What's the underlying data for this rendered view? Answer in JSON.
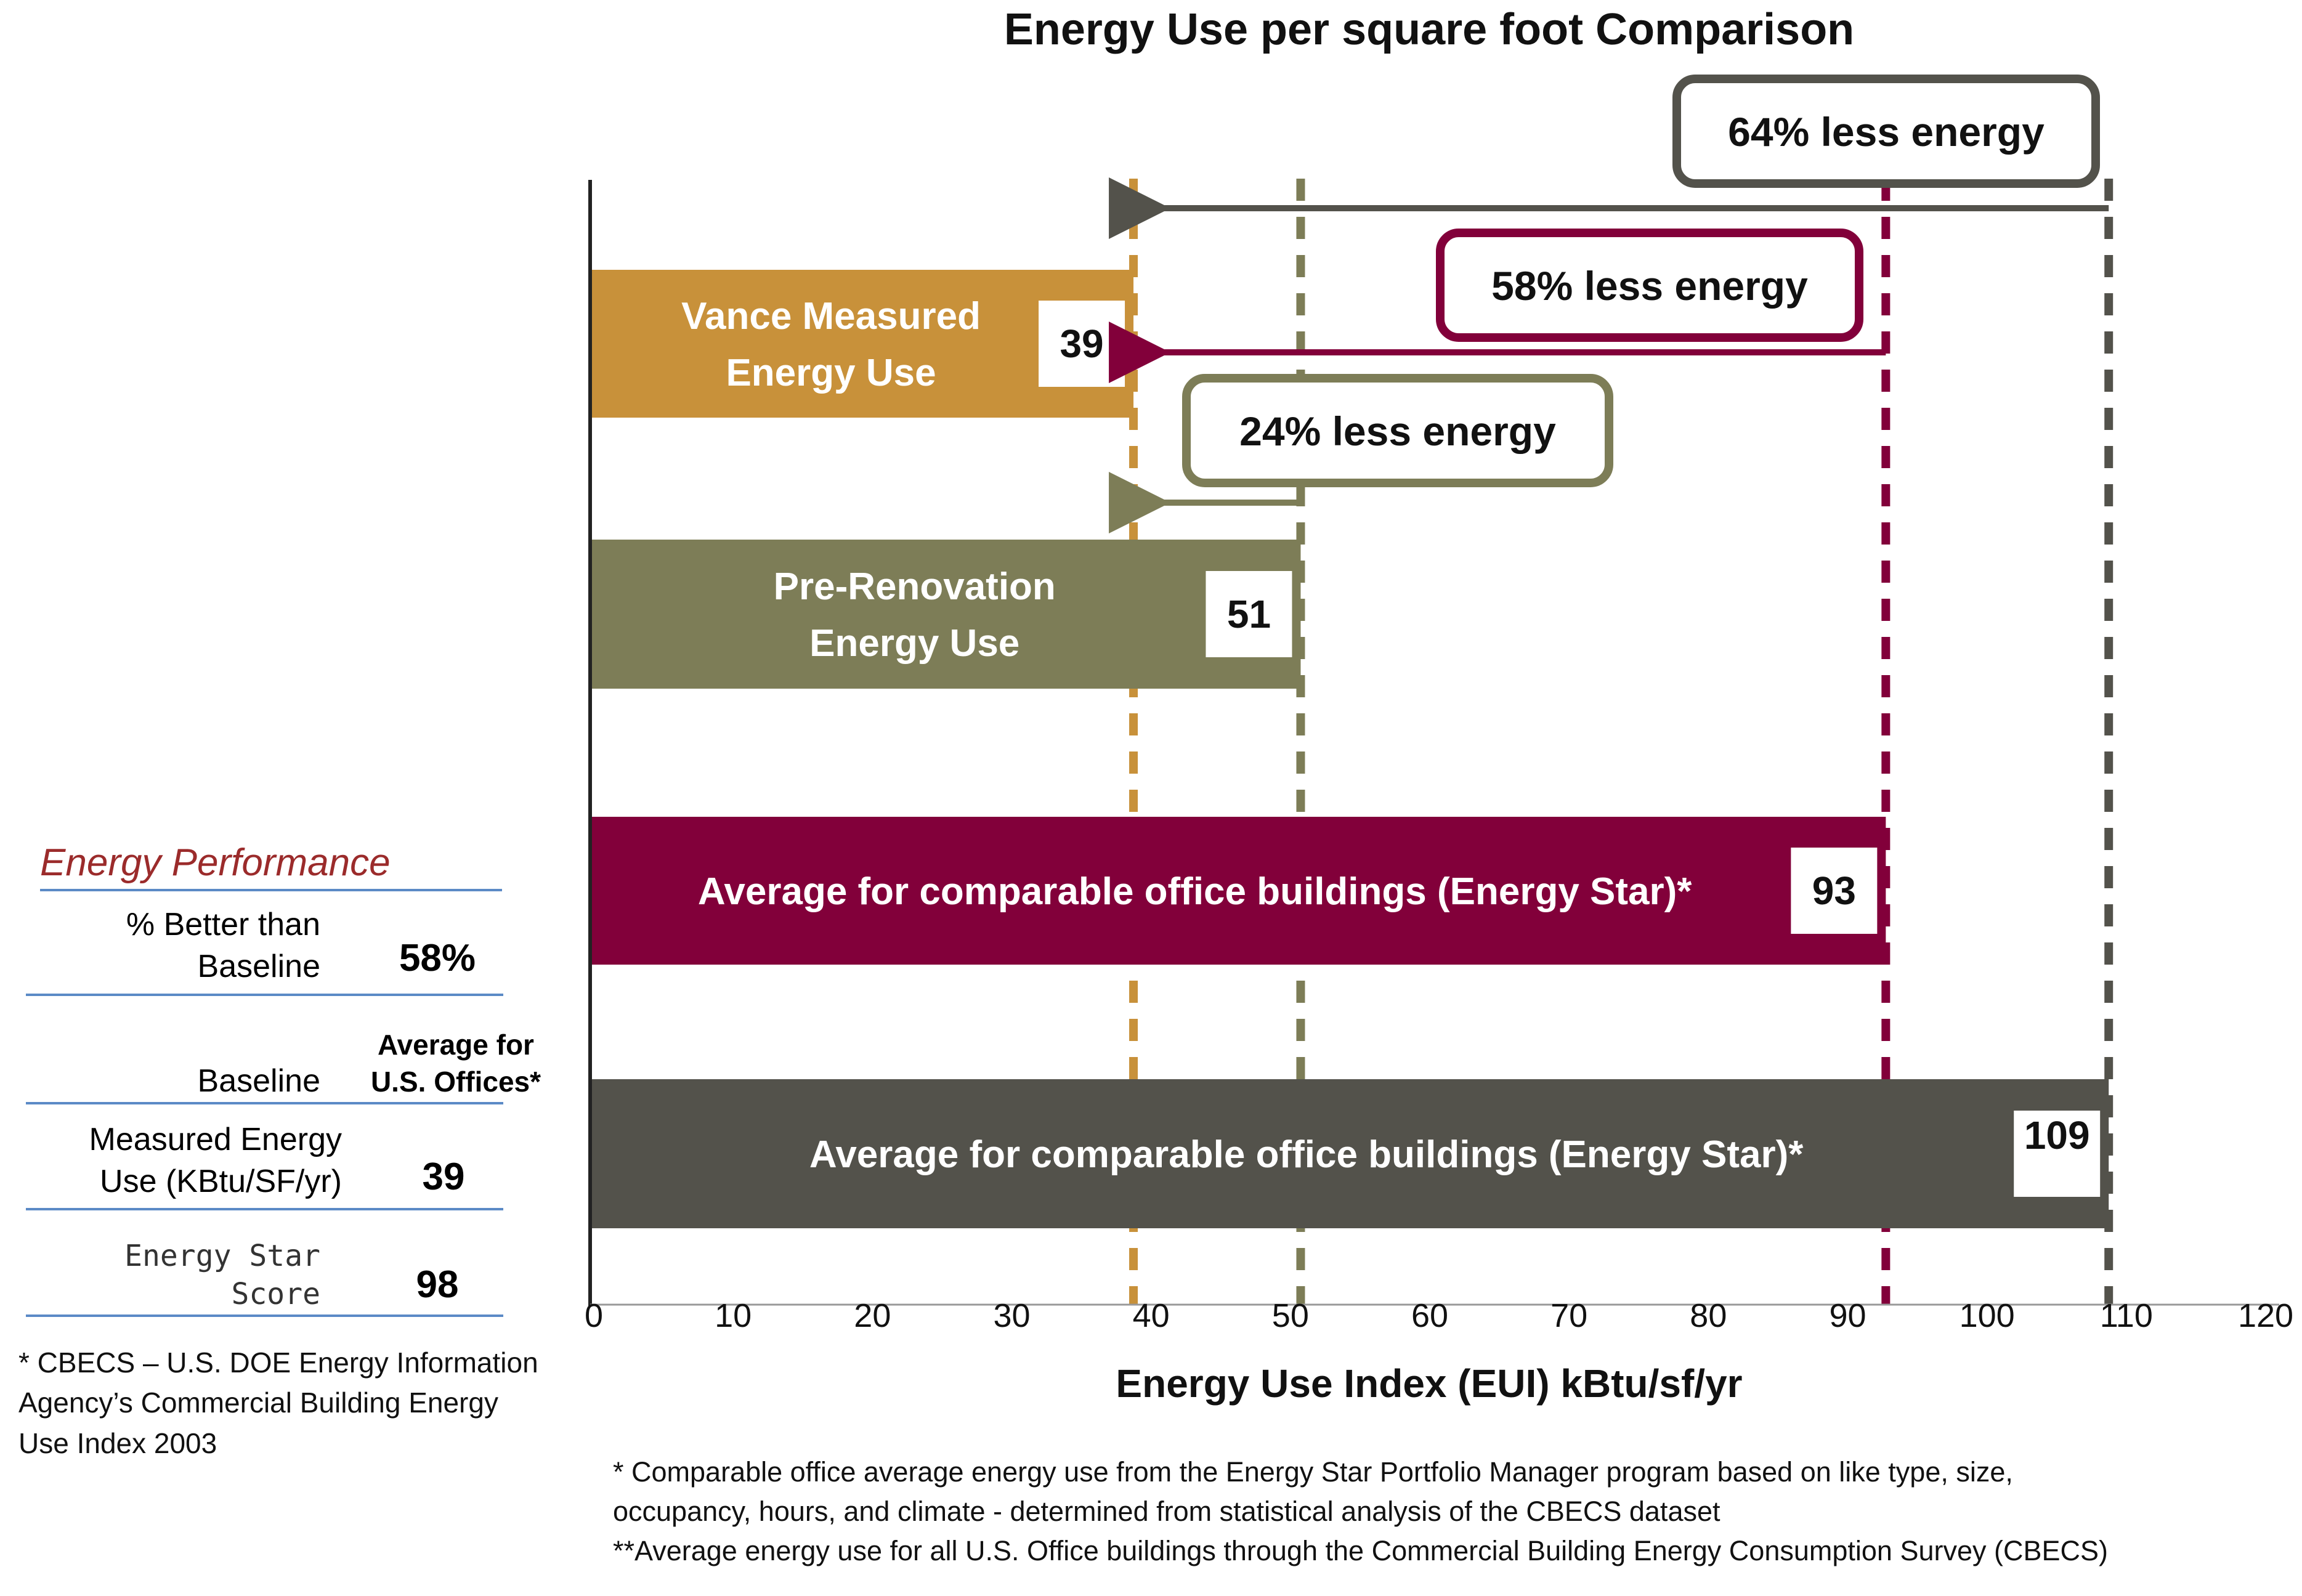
{
  "chart_data": {
    "type": "bar",
    "orientation": "horizontal",
    "title": "Energy Use per square foot Comparison",
    "xlabel": "Energy Use Index (EUI) kBtu/sf/yr",
    "ylabel": "",
    "xlim": [
      0,
      120
    ],
    "xticks": [
      0,
      10,
      20,
      30,
      40,
      50,
      60,
      70,
      80,
      90,
      100,
      110,
      120
    ],
    "grid": false,
    "bars": [
      {
        "label_lines": [
          "Vance Measured",
          "Energy Use"
        ],
        "value": 39,
        "color": "#c8913a"
      },
      {
        "label_lines": [
          "Pre-Renovation",
          "Energy Use"
        ],
        "value": 51,
        "color": "#7d7d57"
      },
      {
        "label_lines": [
          "Average for comparable office buildings (Energy Star)*"
        ],
        "value": 93,
        "color": "#82003a"
      },
      {
        "label_lines": [
          "Average for comparable office buildings (Energy Star)*"
        ],
        "value": 109,
        "color": "#53524b"
      }
    ],
    "reference_lines": [
      {
        "value": 39,
        "color": "#c8913a"
      },
      {
        "value": 51,
        "color": "#7d7d57"
      },
      {
        "value": 93,
        "color": "#82003a"
      },
      {
        "value": 109,
        "color": "#53524b"
      }
    ],
    "annotations": [
      {
        "text": "64% less energy",
        "from": 109,
        "to": 39,
        "color": "#53524b"
      },
      {
        "text": "58% less energy",
        "from": 93,
        "to": 39,
        "color": "#82003a"
      },
      {
        "text": "24% less energy",
        "from": 51,
        "to": 39,
        "color": "#7d7d57"
      }
    ]
  },
  "performance": {
    "title": "Energy Performance",
    "better_label_1": "% Better than",
    "better_label_2": "Baseline",
    "better_value": "58%",
    "baseline_label": "Baseline",
    "baseline_value_1": "Average for",
    "baseline_value_2": "U.S. Offices*",
    "measured_label_1": "Measured Energy",
    "measured_label_2": "Use (KBtu/SF/yr)",
    "measured_value": "39",
    "score_label_1": "Energy Star",
    "score_label_2": "Score",
    "score_value": "98"
  },
  "notes": {
    "cbecs_1": "* CBECS – U.S. DOE Energy Information",
    "cbecs_2": "Agency’s Commercial Building Energy",
    "cbecs_3": "Use Index 2003",
    "footnote_1": "* Comparable office average energy use from the Energy Star Portfolio Manager program based on like type, size,",
    "footnote_2": "occupancy, hours, and climate - determined from statistical analysis of the CBECS dataset",
    "footnote_3": "**Average energy use for all U.S. Office buildings through the Commercial Building Energy Consumption Survey (CBECS)"
  }
}
